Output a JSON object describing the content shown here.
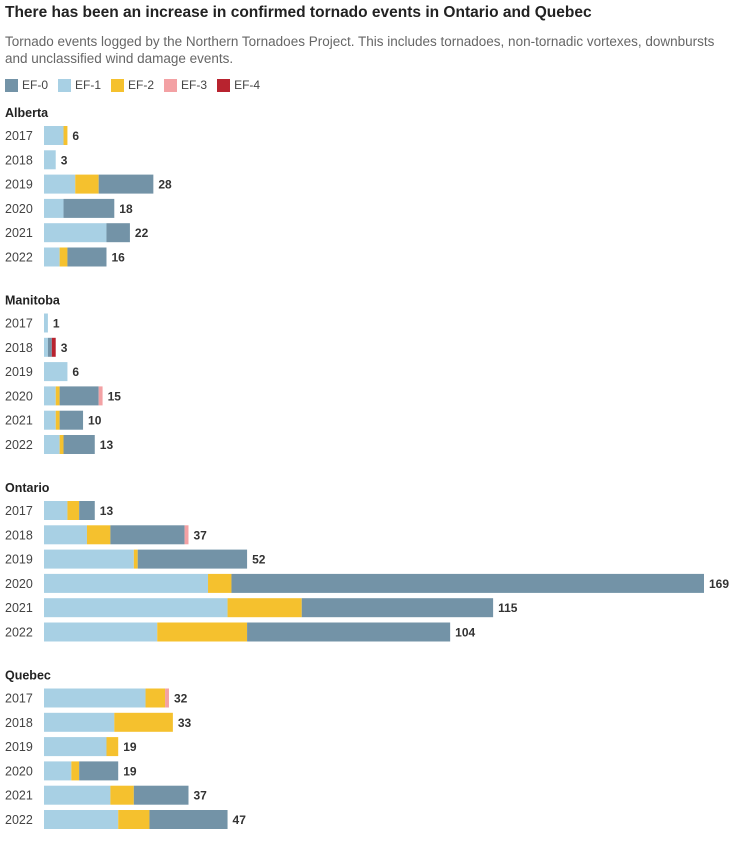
{
  "chart_data": {
    "type": "bar",
    "orientation": "horizontal",
    "stacked": true,
    "title": "There has been an increase in confirmed tornado events in Ontario and Quebec",
    "subtitle": "Tornado events logged by the Northern Tornadoes Project. This includes tornadoes, non-tornadic vortexes, downbursts and unclassified wind damage events.",
    "legend": {
      "placement": "top-left",
      "entries": [
        "EF-0",
        "EF-1",
        "EF-2",
        "EF-3",
        "EF-4"
      ]
    },
    "colors": {
      "EF-0": "#7393a7",
      "EF-1": "#a8d0e4",
      "EF-2": "#f5c12e",
      "EF-3": "#f3a1a4",
      "EF-4": "#b8232f"
    },
    "stack_order": [
      "EF-1",
      "EF-2",
      "EF-0",
      "EF-3",
      "EF-4"
    ],
    "xlim": [
      0,
      169
    ],
    "grid": false,
    "groups": [
      {
        "name": "Alberta",
        "rows": [
          {
            "year": "2017",
            "total": "6",
            "segments": {
              "EF-1": 5,
              "EF-2": 1,
              "EF-0": 0,
              "EF-3": 0,
              "EF-4": 0
            }
          },
          {
            "year": "2018",
            "total": "3",
            "segments": {
              "EF-1": 3,
              "EF-2": 0,
              "EF-0": 0,
              "EF-3": 0,
              "EF-4": 0
            }
          },
          {
            "year": "2019",
            "total": "28",
            "segments": {
              "EF-1": 8,
              "EF-2": 6,
              "EF-0": 14,
              "EF-3": 0,
              "EF-4": 0
            }
          },
          {
            "year": "2020",
            "total": "18",
            "segments": {
              "EF-1": 5,
              "EF-2": 0,
              "EF-0": 13,
              "EF-3": 0,
              "EF-4": 0
            }
          },
          {
            "year": "2021",
            "total": "22",
            "segments": {
              "EF-1": 16,
              "EF-2": 0,
              "EF-0": 6,
              "EF-3": 0,
              "EF-4": 0
            }
          },
          {
            "year": "2022",
            "total": "16",
            "segments": {
              "EF-1": 4,
              "EF-2": 2,
              "EF-0": 10,
              "EF-3": 0,
              "EF-4": 0
            }
          }
        ]
      },
      {
        "name": "Manitoba",
        "rows": [
          {
            "year": "2017",
            "total": "1",
            "segments": {
              "EF-1": 1,
              "EF-2": 0,
              "EF-0": 0,
              "EF-3": 0,
              "EF-4": 0
            }
          },
          {
            "year": "2018",
            "total": "3",
            "segments": {
              "EF-1": 1,
              "EF-2": 0,
              "EF-0": 1,
              "EF-3": 0,
              "EF-4": 1
            }
          },
          {
            "year": "2019",
            "total": "6",
            "segments": {
              "EF-1": 6,
              "EF-2": 0,
              "EF-0": 0,
              "EF-3": 0,
              "EF-4": 0
            }
          },
          {
            "year": "2020",
            "total": "15",
            "segments": {
              "EF-1": 3,
              "EF-2": 1,
              "EF-0": 10,
              "EF-3": 1,
              "EF-4": 0
            }
          },
          {
            "year": "2021",
            "total": "10",
            "segments": {
              "EF-1": 3,
              "EF-2": 1,
              "EF-0": 6,
              "EF-3": 0,
              "EF-4": 0
            }
          },
          {
            "year": "2022",
            "total": "13",
            "segments": {
              "EF-1": 4,
              "EF-2": 1,
              "EF-0": 8,
              "EF-3": 0,
              "EF-4": 0
            }
          }
        ]
      },
      {
        "name": "Ontario",
        "rows": [
          {
            "year": "2017",
            "total": "13",
            "segments": {
              "EF-1": 6,
              "EF-2": 3,
              "EF-0": 4,
              "EF-3": 0,
              "EF-4": 0
            }
          },
          {
            "year": "2018",
            "total": "37",
            "segments": {
              "EF-1": 11,
              "EF-2": 6,
              "EF-0": 19,
              "EF-3": 1,
              "EF-4": 0
            }
          },
          {
            "year": "2019",
            "total": "52",
            "segments": {
              "EF-1": 23,
              "EF-2": 1,
              "EF-0": 28,
              "EF-3": 0,
              "EF-4": 0
            }
          },
          {
            "year": "2020",
            "total": "169",
            "segments": {
              "EF-1": 42,
              "EF-2": 6,
              "EF-0": 121,
              "EF-3": 0,
              "EF-4": 0
            }
          },
          {
            "year": "2021",
            "total": "115",
            "segments": {
              "EF-1": 47,
              "EF-2": 19,
              "EF-0": 49,
              "EF-3": 0,
              "EF-4": 0
            }
          },
          {
            "year": "2022",
            "total": "104",
            "segments": {
              "EF-1": 29,
              "EF-2": 23,
              "EF-0": 52,
              "EF-3": 0,
              "EF-4": 0
            }
          }
        ]
      },
      {
        "name": "Quebec",
        "rows": [
          {
            "year": "2017",
            "total": "32",
            "segments": {
              "EF-1": 26,
              "EF-2": 5,
              "EF-0": 0,
              "EF-3": 1,
              "EF-4": 0
            }
          },
          {
            "year": "2018",
            "total": "33",
            "segments": {
              "EF-1": 18,
              "EF-2": 15,
              "EF-0": 0,
              "EF-3": 0,
              "EF-4": 0
            }
          },
          {
            "year": "2019",
            "total": "19",
            "segments": {
              "EF-1": 16,
              "EF-2": 3,
              "EF-0": 0,
              "EF-3": 0,
              "EF-4": 0
            }
          },
          {
            "year": "2020",
            "total": "19",
            "segments": {
              "EF-1": 7,
              "EF-2": 2,
              "EF-0": 10,
              "EF-3": 0,
              "EF-4": 0
            }
          },
          {
            "year": "2021",
            "total": "37",
            "segments": {
              "EF-1": 17,
              "EF-2": 6,
              "EF-0": 14,
              "EF-3": 0,
              "EF-4": 0
            }
          },
          {
            "year": "2022",
            "total": "47",
            "segments": {
              "EF-1": 19,
              "EF-2": 8,
              "EF-0": 20,
              "EF-3": 0,
              "EF-4": 0
            }
          }
        ]
      }
    ]
  }
}
